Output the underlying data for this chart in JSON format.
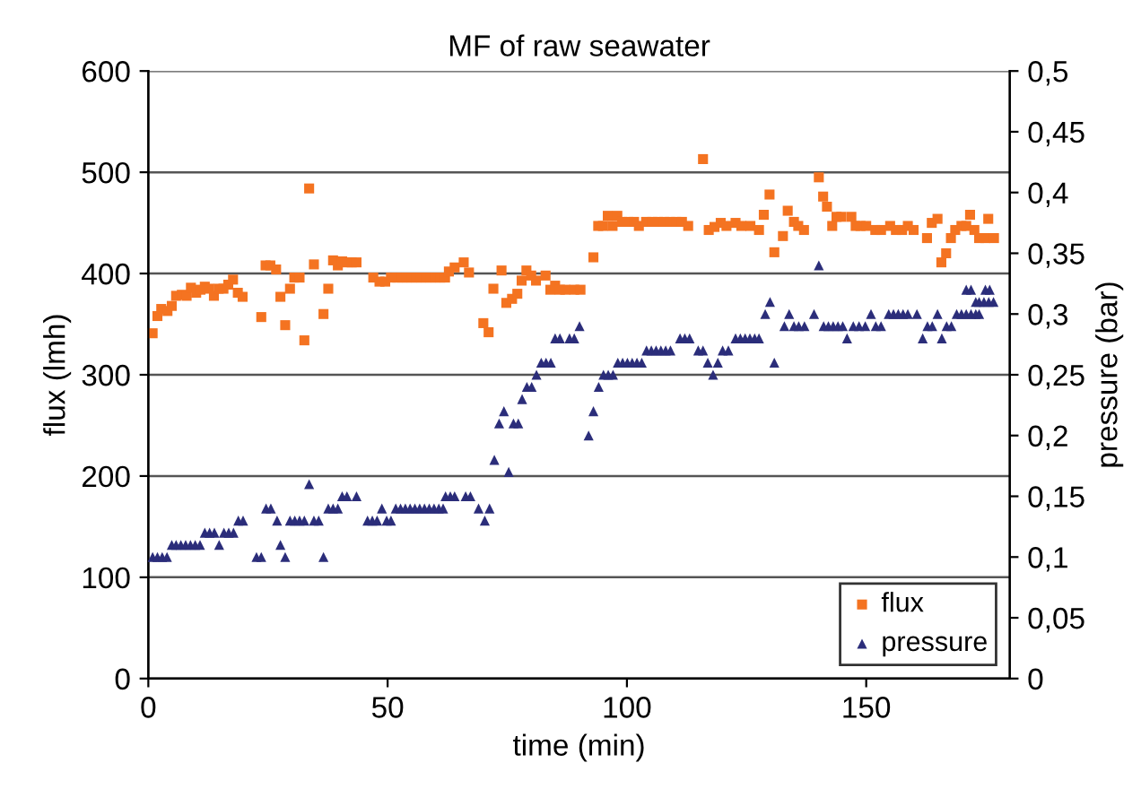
{
  "chart_data": {
    "type": "scatter",
    "title": "MF of raw seawater",
    "xlabel": "time (min)",
    "ylabel": "flux (lmh)",
    "y2label": "pressure (bar)",
    "xlim": [
      0,
      180
    ],
    "xticks": [
      0,
      50,
      100,
      150
    ],
    "ylim": [
      0,
      600
    ],
    "yticks": [
      0,
      100,
      200,
      300,
      400,
      500,
      600
    ],
    "y2lim": [
      0,
      0.5
    ],
    "y2ticks": [
      {
        "value": 0,
        "label": "0"
      },
      {
        "value": 0.05,
        "label": "0,05"
      },
      {
        "value": 0.1,
        "label": "0,1"
      },
      {
        "value": 0.15,
        "label": "0,15"
      },
      {
        "value": 0.2,
        "label": "0,2"
      },
      {
        "value": 0.25,
        "label": "0,25"
      },
      {
        "value": 0.3,
        "label": "0,3"
      },
      {
        "value": 0.35,
        "label": "0,35"
      },
      {
        "value": 0.4,
        "label": "0,4"
      },
      {
        "value": 0.45,
        "label": "0,45"
      },
      {
        "value": 0.5,
        "label": "0,5"
      }
    ],
    "grid": "y",
    "legend": "bottom right",
    "series": [
      {
        "name": "flux",
        "color": "#f47321",
        "marker": "square",
        "x": [
          0.9,
          1.9,
          2.7,
          4.0,
          4.9,
          5.8,
          7.0,
          8.0,
          8.9,
          10.0,
          10.9,
          11.8,
          12.7,
          13.7,
          14.7,
          15.7,
          16.7,
          17.7,
          18.7,
          19.7,
          23.6,
          24.5,
          25.5,
          26.7,
          27.6,
          28.6,
          29.6,
          30.5,
          31.6,
          32.6,
          33.6,
          34.6,
          36.6,
          37.6,
          38.6,
          39.6,
          40.5,
          41.5,
          42.5,
          43.5,
          47.0,
          48.3,
          49.5,
          50.7,
          52,
          53,
          54,
          55,
          56,
          57,
          58,
          59,
          60,
          61,
          62,
          62.8,
          64,
          65.9,
          67,
          70,
          71.1,
          72.1,
          73.8,
          74.8,
          76,
          77.1,
          78,
          79,
          80,
          81,
          83,
          84,
          85,
          86,
          87.1,
          89,
          90.3,
          93,
          94,
          95,
          96,
          97,
          98,
          99,
          100.3,
          101.5,
          102.5,
          104,
          105.3,
          106.5,
          107.8,
          109,
          110.3,
          111.5,
          112.8,
          115.9,
          117.1,
          118.3,
          119.6,
          120.8,
          122.7,
          123.9,
          125.8,
          127.6,
          128.6,
          129.8,
          130.8,
          132.6,
          133.6,
          134.9,
          135.8,
          137,
          140.1,
          141,
          141.8,
          142.9,
          143.8,
          144.8,
          146.9,
          147.8,
          148.8,
          150,
          151.9,
          153.1,
          155,
          156.2,
          157.5,
          158.7,
          159.9,
          162.7,
          163.7,
          164.9,
          165.7,
          166.7,
          167.7,
          168.6,
          169.9,
          170.9,
          171.7,
          172.6,
          173.6,
          174.9,
          175.5,
          176.7
        ],
        "values": [
          341,
          358,
          365,
          363,
          368,
          378,
          379,
          378,
          386,
          381,
          384,
          387,
          385,
          378,
          385,
          385,
          389,
          394,
          381,
          377,
          357,
          408,
          408,
          404,
          377,
          349,
          385,
          396,
          396,
          334,
          484,
          409,
          360,
          385,
          413,
          408,
          412,
          411,
          411,
          411,
          396,
          392,
          392,
          396,
          396,
          396,
          396,
          396,
          396,
          396,
          396,
          396,
          396,
          396,
          396,
          402,
          406,
          411,
          401,
          351,
          342,
          385,
          403,
          371,
          375,
          380,
          393,
          403,
          398,
          393,
          398,
          384,
          388,
          384,
          384,
          384,
          384,
          416,
          447,
          447,
          457,
          447,
          457,
          451,
          451,
          451,
          447,
          451,
          451,
          451,
          451,
          451,
          451,
          451,
          447,
          513,
          443,
          446,
          450,
          447,
          450,
          447,
          447,
          443,
          458,
          478,
          421,
          437,
          462,
          451,
          447,
          443,
          495,
          476,
          466,
          447,
          456,
          456,
          456,
          447,
          447,
          447,
          443,
          443,
          447,
          443,
          443,
          447,
          443,
          435,
          450,
          454,
          411,
          420,
          435,
          443,
          447,
          447,
          458,
          443,
          435,
          435,
          454,
          435
        ]
      },
      {
        "name": "pressure",
        "color": "#2b2d7a",
        "marker": "triangle",
        "axis": "y2",
        "x": [
          0.9,
          1.9,
          2.9,
          3.9,
          4.9,
          5.8,
          6.8,
          7.8,
          8.8,
          9.8,
          10.8,
          11.8,
          12.8,
          13.8,
          14.8,
          15.8,
          16.8,
          17.8,
          18.8,
          19.8,
          22.6,
          23.6,
          24.6,
          25.6,
          26.9,
          27.6,
          28.6,
          29.6,
          30.6,
          31.6,
          32.6,
          33.6,
          34.6,
          35.6,
          36.6,
          37.6,
          38.6,
          39.6,
          40.5,
          41.5,
          43.5,
          45.8,
          46.8,
          47.8,
          48.8,
          49.8,
          50.7,
          51.7,
          52.7,
          53.7,
          54.7,
          55.7,
          56.7,
          57.7,
          58.7,
          59.7,
          60.7,
          61.6,
          62.1,
          63.1,
          64,
          66.3,
          67.3,
          69,
          70.3,
          71.3,
          72.3,
          73.3,
          74.3,
          75.3,
          76.3,
          77.3,
          78.1,
          79.1,
          80.1,
          81.1,
          82.1,
          83.1,
          84.1,
          85,
          86,
          88,
          89,
          90.1,
          92,
          93,
          94.1,
          95.1,
          96.1,
          97.1,
          98.1,
          99.1,
          100.1,
          101.1,
          102.1,
          103.1,
          104.1,
          105.1,
          106.1,
          107.1,
          108.1,
          109.1,
          111.1,
          112.1,
          113.1,
          114.9,
          115.9,
          116.9,
          118,
          119,
          120,
          121.2,
          122.7,
          123.7,
          124.7,
          125.7,
          126.7,
          127.6,
          128.9,
          129.9,
          130.8,
          132.9,
          133.9,
          134.9,
          135.9,
          137.1,
          139.1,
          140.1,
          141.1,
          142.1,
          143.1,
          144.1,
          145.1,
          146,
          147.3,
          148.5,
          149.8,
          151,
          152,
          153.1,
          154.7,
          155.7,
          156.7,
          157.7,
          158.7,
          160.6,
          161.8,
          162.8,
          163.8,
          164.9,
          165.8,
          166.8,
          167.8,
          168.9,
          169.9,
          170.9,
          171.9,
          172.9,
          173.6,
          170.9,
          171.9,
          172.9,
          173.6,
          174.6,
          175.6,
          176.6,
          174.9,
          175.8
        ],
        "values": [
          0.1,
          0.1,
          0.1,
          0.1,
          0.11,
          0.11,
          0.11,
          0.11,
          0.11,
          0.11,
          0.11,
          0.12,
          0.12,
          0.12,
          0.11,
          0.12,
          0.12,
          0.12,
          0.13,
          0.13,
          0.1,
          0.1,
          0.14,
          0.14,
          0.13,
          0.11,
          0.1,
          0.13,
          0.13,
          0.13,
          0.13,
          0.16,
          0.13,
          0.13,
          0.1,
          0.14,
          0.14,
          0.14,
          0.15,
          0.15,
          0.15,
          0.13,
          0.13,
          0.13,
          0.14,
          0.13,
          0.13,
          0.14,
          0.14,
          0.14,
          0.14,
          0.14,
          0.14,
          0.14,
          0.14,
          0.14,
          0.14,
          0.14,
          0.15,
          0.15,
          0.15,
          0.15,
          0.15,
          0.14,
          0.13,
          0.14,
          0.18,
          0.21,
          0.22,
          0.17,
          0.21,
          0.21,
          0.23,
          0.24,
          0.24,
          0.25,
          0.26,
          0.26,
          0.26,
          0.28,
          0.28,
          0.28,
          0.28,
          0.29,
          0.2,
          0.22,
          0.24,
          0.25,
          0.25,
          0.25,
          0.26,
          0.26,
          0.26,
          0.26,
          0.26,
          0.26,
          0.27,
          0.27,
          0.27,
          0.27,
          0.27,
          0.27,
          0.28,
          0.28,
          0.28,
          0.27,
          0.27,
          0.26,
          0.25,
          0.26,
          0.27,
          0.27,
          0.28,
          0.28,
          0.28,
          0.28,
          0.28,
          0.28,
          0.3,
          0.31,
          0.26,
          0.29,
          0.3,
          0.29,
          0.29,
          0.29,
          0.3,
          0.34,
          0.29,
          0.29,
          0.29,
          0.29,
          0.29,
          0.28,
          0.29,
          0.29,
          0.29,
          0.3,
          0.29,
          0.29,
          0.3,
          0.3,
          0.3,
          0.3,
          0.3,
          0.3,
          0.28,
          0.29,
          0.29,
          0.3,
          0.28,
          0.29,
          0.29,
          0.3,
          0.3,
          0.3,
          0.3,
          0.3,
          0.3,
          0.32,
          0.32,
          0.31,
          0.31,
          0.31,
          0.31,
          0.31,
          0.32,
          0.32
        ]
      }
    ]
  }
}
